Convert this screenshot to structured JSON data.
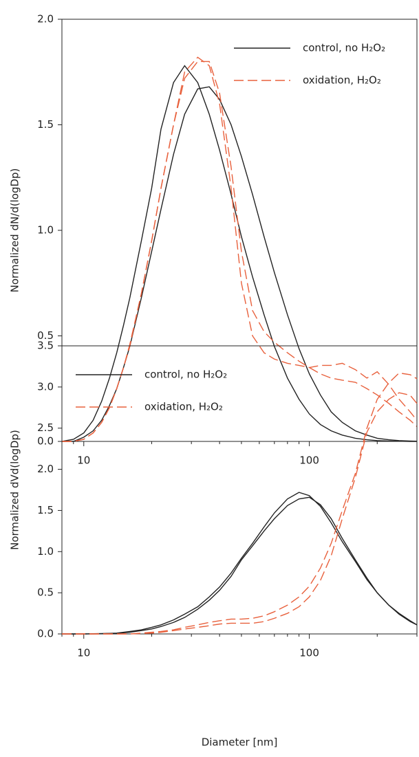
{
  "chart_data": [
    {
      "type": "line",
      "ylabel": "Normalized dN/d(logDp)",
      "xscale": "log",
      "legend": "upper right",
      "xlim": [
        8,
        300
      ],
      "xticks": [
        10,
        100
      ],
      "xminorticks": [
        8,
        9,
        20,
        30,
        40,
        50,
        60,
        70,
        80,
        90,
        200,
        300
      ],
      "ylim": [
        0,
        2
      ],
      "yticks": [
        {
          "value": 0,
          "label": "0.0"
        },
        0.5,
        {
          "value": 1,
          "label": "1.0"
        },
        1.5,
        {
          "value": 2,
          "label": "2.0"
        }
      ],
      "x": [
        8,
        9,
        10,
        11,
        12,
        13,
        14,
        15,
        16,
        18,
        20,
        22,
        25,
        28,
        32,
        36,
        40,
        45,
        50,
        56,
        63,
        70,
        80,
        90,
        100,
        112,
        125,
        140,
        160,
        180,
        200,
        225,
        250,
        280,
        300
      ],
      "series": [
        {
          "name": "control, no H₂O₂",
          "color": "#222222",
          "dash": "solid",
          "values": [
            0,
            0.01,
            0.04,
            0.1,
            0.19,
            0.3,
            0.42,
            0.55,
            0.68,
            0.95,
            1.2,
            1.48,
            1.7,
            1.78,
            1.7,
            1.55,
            1.38,
            1.17,
            0.97,
            0.78,
            0.6,
            0.45,
            0.3,
            0.2,
            0.13,
            0.08,
            0.05,
            0.03,
            0.015,
            0.008,
            0.004,
            0.002,
            0.001,
            0,
            0
          ]
        },
        {
          "color": "#222222",
          "dash": "solid",
          "values": [
            0,
            0,
            0.02,
            0.05,
            0.1,
            0.17,
            0.25,
            0.35,
            0.45,
            0.68,
            0.9,
            1.1,
            1.36,
            1.55,
            1.67,
            1.68,
            1.62,
            1.5,
            1.35,
            1.17,
            0.97,
            0.8,
            0.6,
            0.44,
            0.32,
            0.22,
            0.14,
            0.09,
            0.05,
            0.03,
            0.015,
            0.008,
            0.004,
            0.002,
            0.001
          ]
        },
        {
          "name": "oxidation, H₂O₂",
          "color": "#e8603c",
          "dash": "dashed",
          "values": [
            0,
            0,
            0.01,
            0.04,
            0.09,
            0.16,
            0.25,
            0.35,
            0.45,
            0.7,
            0.95,
            1.2,
            1.5,
            1.75,
            1.82,
            1.78,
            1.6,
            1.2,
            0.75,
            0.5,
            0.42,
            0.39,
            0.37,
            0.36,
            0.35,
            0.36,
            0.36,
            0.37,
            0.34,
            0.3,
            0.33,
            0.27,
            0.2,
            0.14,
            0.1
          ]
        },
        {
          "color": "#e8603c",
          "dash": "dashed",
          "values": [
            0,
            0,
            0.01,
            0.04,
            0.09,
            0.16,
            0.25,
            0.35,
            0.46,
            0.7,
            0.95,
            1.2,
            1.5,
            1.72,
            1.8,
            1.8,
            1.65,
            1.3,
            0.9,
            0.62,
            0.52,
            0.47,
            0.42,
            0.38,
            0.35,
            0.32,
            0.3,
            0.29,
            0.28,
            0.25,
            0.22,
            0.18,
            0.14,
            0.1,
            0.07
          ]
        }
      ]
    },
    {
      "type": "line",
      "ylabel": "Normalized dVd(logDp)",
      "xlabel": "Diameter [nm]",
      "xscale": "log",
      "legend": "upper left",
      "xlim": [
        8,
        300
      ],
      "xticks": [
        10,
        100
      ],
      "xminorticks": [
        8,
        9,
        20,
        30,
        40,
        50,
        60,
        70,
        80,
        90,
        200,
        300
      ],
      "ylim": [
        0,
        3.5
      ],
      "yticks": [
        {
          "value": 0,
          "label": "0.0"
        },
        0.5,
        {
          "value": 1,
          "label": "1.0"
        },
        1.5,
        {
          "value": 2,
          "label": "2.0"
        },
        2.5,
        {
          "value": 3,
          "label": "3.0"
        },
        3.5
      ],
      "x": [
        8,
        9,
        10,
        11,
        12,
        13,
        14,
        15,
        16,
        18,
        20,
        22,
        25,
        28,
        32,
        36,
        40,
        45,
        50,
        56,
        63,
        70,
        80,
        90,
        100,
        112,
        125,
        140,
        160,
        180,
        200,
        225,
        250,
        280,
        300
      ],
      "series": [
        {
          "name": "control, no H₂O₂",
          "color": "#222222",
          "dash": "solid",
          "values": [
            0,
            0,
            0,
            0.002,
            0.005,
            0.007,
            0.01,
            0.02,
            0.03,
            0.05,
            0.08,
            0.11,
            0.17,
            0.24,
            0.33,
            0.45,
            0.57,
            0.74,
            0.92,
            1.1,
            1.3,
            1.47,
            1.64,
            1.72,
            1.68,
            1.55,
            1.35,
            1.12,
            0.88,
            0.66,
            0.5,
            0.35,
            0.25,
            0.16,
            0.11
          ]
        },
        {
          "color": "#222222",
          "dash": "solid",
          "values": [
            0,
            0,
            0,
            0.001,
            0.003,
            0.005,
            0.008,
            0.014,
            0.02,
            0.04,
            0.06,
            0.09,
            0.14,
            0.2,
            0.3,
            0.41,
            0.53,
            0.7,
            0.9,
            1.07,
            1.25,
            1.4,
            1.56,
            1.64,
            1.66,
            1.57,
            1.4,
            1.16,
            0.9,
            0.68,
            0.5,
            0.35,
            0.24,
            0.15,
            0.11
          ]
        },
        {
          "name": "oxidation, H₂O₂",
          "color": "#e8603c",
          "dash": "dashed",
          "values": [
            0,
            0,
            0,
            0,
            0,
            0,
            0,
            0,
            0,
            0.01,
            0.02,
            0.03,
            0.05,
            0.08,
            0.11,
            0.14,
            0.16,
            0.18,
            0.18,
            0.19,
            0.22,
            0.27,
            0.35,
            0.45,
            0.58,
            0.8,
            1.1,
            1.5,
            1.95,
            2.5,
            2.85,
            3.05,
            3.17,
            3.15,
            3.1
          ]
        },
        {
          "color": "#e8603c",
          "dash": "dashed",
          "values": [
            0,
            0,
            0,
            0,
            0,
            0,
            0,
            0,
            0,
            0.005,
            0.01,
            0.02,
            0.04,
            0.06,
            0.08,
            0.1,
            0.12,
            0.13,
            0.13,
            0.13,
            0.15,
            0.19,
            0.25,
            0.33,
            0.45,
            0.65,
            0.95,
            1.4,
            1.9,
            2.45,
            2.7,
            2.85,
            2.93,
            2.9,
            2.8
          ]
        }
      ]
    }
  ]
}
